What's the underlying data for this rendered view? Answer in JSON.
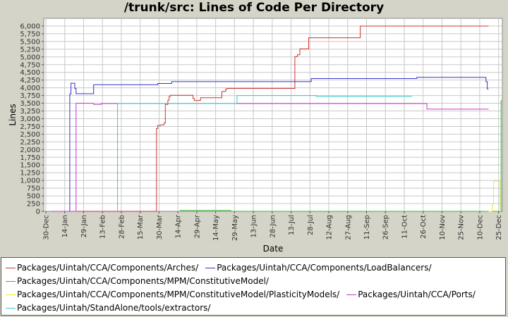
{
  "chart_data": {
    "type": "line",
    "title": "/trunk/src: Lines of Code Per Directory",
    "xlabel": "Date",
    "ylabel": "Lines",
    "ylim": [
      0,
      6250
    ],
    "xlim": [
      0,
      363
    ],
    "yticks": [
      0,
      250,
      500,
      750,
      1000,
      1250,
      1500,
      1750,
      2000,
      2250,
      2500,
      2750,
      3000,
      3250,
      3500,
      3750,
      4000,
      4250,
      4500,
      4750,
      5000,
      5250,
      5500,
      5750,
      6000
    ],
    "ytick_labels": [
      "0",
      "250",
      "500",
      "750",
      "1,000",
      "1,250",
      "1,500",
      "1,750",
      "2,000",
      "2,250",
      "2,500",
      "2,750",
      "3,000",
      "3,250",
      "3,500",
      "3,750",
      "4,000",
      "4,250",
      "4,500",
      "4,750",
      "5,000",
      "5,250",
      "5,500",
      "5,750",
      "6,000"
    ],
    "xticks": [
      0,
      15,
      30,
      45,
      60,
      75,
      90,
      105,
      120,
      135,
      150,
      165,
      180,
      195,
      210,
      225,
      240,
      255,
      270,
      285,
      300,
      315,
      330,
      345,
      360
    ],
    "xtick_labels": [
      "30-Dec",
      "14-Jan",
      "29-Jan",
      "13-Feb",
      "28-Feb",
      "15-Mar",
      "30-Mar",
      "14-Apr",
      "29-Apr",
      "14-May",
      "29-May",
      "13-Jun",
      "28-Jun",
      "13-Jul",
      "28-Jul",
      "12-Aug",
      "27-Aug",
      "11-Sep",
      "26-Sep",
      "11-Oct",
      "26-Oct",
      "10-Nov",
      "25-Nov",
      "10-Dec",
      "25-Dec"
    ],
    "grid": true,
    "legend_position": "bottom",
    "series": [
      {
        "name": "Packages/Uintah/CCA/Components/Arches/",
        "color": "#cc3333",
        "points": [
          [
            5,
            0
          ],
          [
            88,
            0
          ],
          [
            88,
            2680
          ],
          [
            89,
            2680
          ],
          [
            89,
            2780
          ],
          [
            91,
            2780
          ],
          [
            91,
            2800
          ],
          [
            94,
            2800
          ],
          [
            94,
            2860
          ],
          [
            95,
            2860
          ],
          [
            95,
            3460
          ],
          [
            97,
            3460
          ],
          [
            97,
            3600
          ],
          [
            98,
            3600
          ],
          [
            98,
            3720
          ],
          [
            99,
            3720
          ],
          [
            99,
            3760
          ],
          [
            117,
            3760
          ],
          [
            117,
            3660
          ],
          [
            118,
            3660
          ],
          [
            118,
            3590
          ],
          [
            123,
            3590
          ],
          [
            123,
            3680
          ],
          [
            140,
            3680
          ],
          [
            140,
            3880
          ],
          [
            143,
            3880
          ],
          [
            143,
            3960
          ],
          [
            144,
            3960
          ],
          [
            144,
            3980
          ],
          [
            198,
            3980
          ],
          [
            198,
            5010
          ],
          [
            200,
            5010
          ],
          [
            200,
            5070
          ],
          [
            202,
            5070
          ],
          [
            202,
            5260
          ],
          [
            209,
            5260
          ],
          [
            209,
            5620
          ],
          [
            250,
            5620
          ],
          [
            250,
            6000
          ],
          [
            352,
            6000
          ]
        ]
      },
      {
        "name": "Packages/Uintah/CCA/Components/LoadBalancers/",
        "color": "#3333cc",
        "points": [
          [
            5,
            0
          ],
          [
            19,
            0
          ],
          [
            19,
            3800
          ],
          [
            20,
            3800
          ],
          [
            20,
            4150
          ],
          [
            23,
            4150
          ],
          [
            23,
            3980
          ],
          [
            24,
            3980
          ],
          [
            24,
            3810
          ],
          [
            38,
            3810
          ],
          [
            38,
            4100
          ],
          [
            89,
            4100
          ],
          [
            89,
            4140
          ],
          [
            100,
            4140
          ],
          [
            100,
            4200
          ],
          [
            211,
            4200
          ],
          [
            211,
            4300
          ],
          [
            295,
            4300
          ],
          [
            295,
            4340
          ],
          [
            350,
            4340
          ],
          [
            350,
            4200
          ],
          [
            351,
            4200
          ],
          [
            351,
            3960
          ],
          [
            352,
            3960
          ]
        ]
      },
      {
        "name": "Packages/Uintah/CCA/Components/MPM/ConstitutiveModel/",
        "color": "#33bb33",
        "points": [
          [
            107,
            0
          ],
          [
            107,
            30
          ],
          [
            147,
            30
          ],
          [
            147,
            0
          ],
          [
            362,
            0
          ],
          [
            362,
            3580
          ],
          [
            363,
            3580
          ]
        ]
      },
      {
        "name": "Packages/Uintah/CCA/Components/MPM/ConstitutiveModel/PlasticityModels/",
        "color": "#eeee22",
        "points": [
          [
            352,
            0
          ],
          [
            355,
            0
          ],
          [
            355,
            200
          ],
          [
            356,
            200
          ],
          [
            356,
            980
          ],
          [
            361,
            980
          ],
          [
            361,
            0
          ]
        ]
      },
      {
        "name": "Packages/Uintah/CCA/Ports/",
        "color": "#cc33cc",
        "points": [
          [
            5,
            0
          ],
          [
            24,
            0
          ],
          [
            24,
            3500
          ],
          [
            38,
            3500
          ],
          [
            38,
            3460
          ],
          [
            44,
            3460
          ],
          [
            44,
            3490
          ],
          [
            303,
            3490
          ],
          [
            303,
            3310
          ],
          [
            352,
            3310
          ]
        ]
      },
      {
        "name": "Packages/Uintah/StandAlone/tools/extractors/",
        "color": "#33cccc",
        "points": [
          [
            57,
            0
          ],
          [
            57,
            3490
          ],
          [
            145,
            3490
          ],
          [
            145,
            3490
          ],
          [
            152,
            3490
          ],
          [
            152,
            3750
          ],
          [
            215,
            3750
          ],
          [
            215,
            3720
          ],
          [
            291,
            3720
          ]
        ]
      }
    ]
  },
  "legend": {
    "rows": [
      [
        0,
        1
      ],
      [
        2
      ],
      [
        3,
        4
      ],
      [
        5
      ]
    ]
  }
}
